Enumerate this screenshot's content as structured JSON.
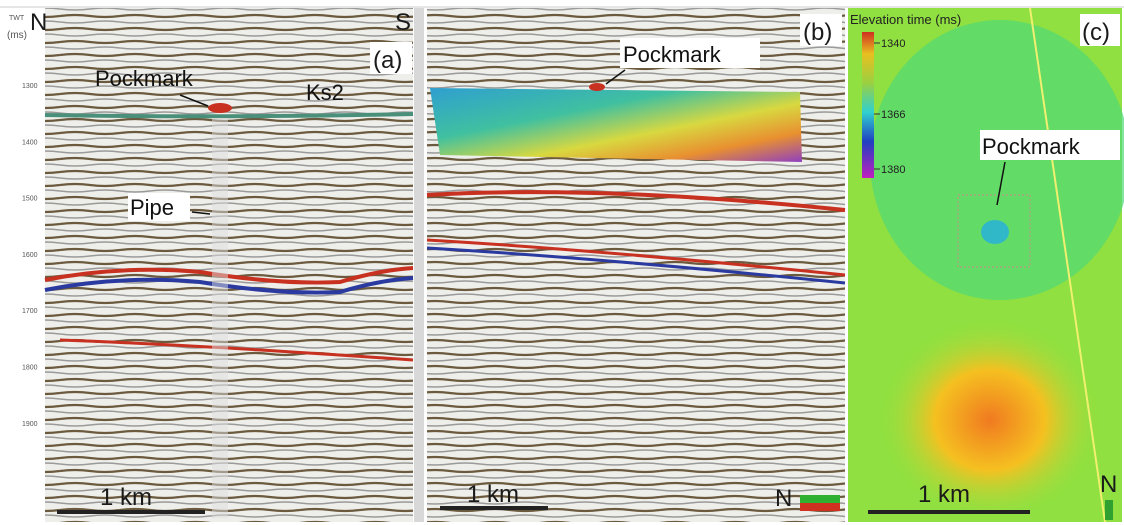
{
  "panel_a": {
    "axis_title_line1": "TWT",
    "axis_title_line2": "(ms)",
    "left_direction": "N",
    "right_direction": "S",
    "label": "(a)",
    "pockmark": "Pockmark",
    "horizon": "Ks2",
    "pipe": "Pipe",
    "scale_bar": "1 km",
    "ticks": [
      1300,
      1400,
      1500,
      1600,
      1700,
      1800,
      1900
    ]
  },
  "panel_b": {
    "label": "(b)",
    "pockmark": "Pockmark",
    "scale_bar": "1 km",
    "north": "N"
  },
  "panel_c": {
    "label": "(c)",
    "colorbar_title": "Elevation time (ms)",
    "colorbar_ticks": [
      1340,
      1366,
      1380
    ],
    "pockmark": "Pockmark",
    "scale_bar": "1 km",
    "north": "N"
  }
}
